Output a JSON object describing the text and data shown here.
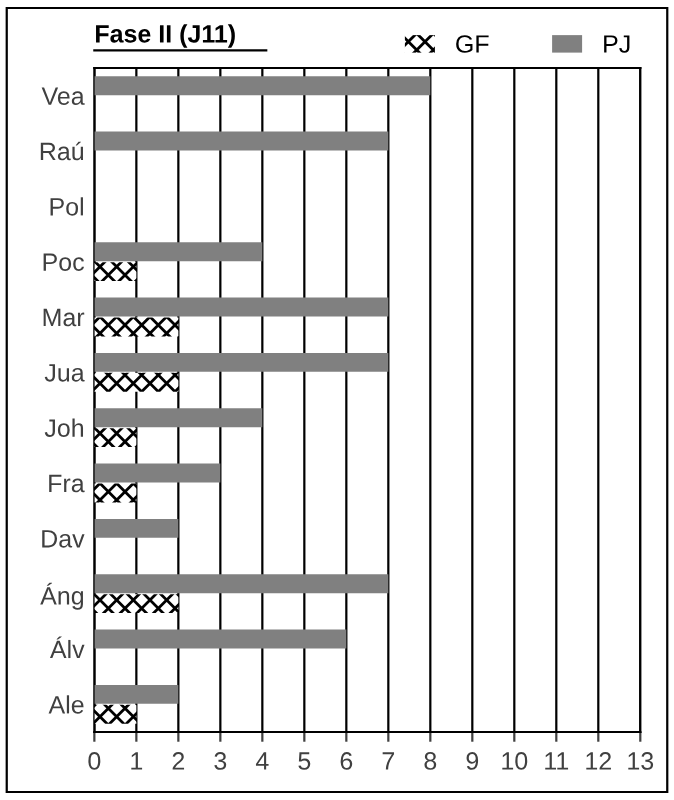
{
  "chart_data": {
    "type": "bar",
    "orientation": "horizontal",
    "title": "Fase II (J11)",
    "categories": [
      "Vea",
      "Raú",
      "Pol",
      "Poc",
      "Mar",
      "Jua",
      "Joh",
      "Fra",
      "Dav",
      "Áng",
      "Álv",
      "Ale"
    ],
    "series": [
      {
        "name": "GF",
        "color": "#000000",
        "values": [
          0,
          0,
          0,
          1,
          2,
          2,
          1,
          1,
          0,
          2,
          0,
          1
        ]
      },
      {
        "name": "PJ",
        "color": "#808080",
        "values": [
          8,
          7,
          0,
          4,
          7,
          7,
          4,
          3,
          2,
          7,
          6,
          2
        ]
      }
    ],
    "xlim": [
      0,
      13
    ],
    "xticks": [
      0,
      1,
      2,
      3,
      4,
      5,
      6,
      7,
      8,
      9,
      10,
      11,
      12,
      13
    ],
    "grid": "x",
    "legend": "top right"
  }
}
